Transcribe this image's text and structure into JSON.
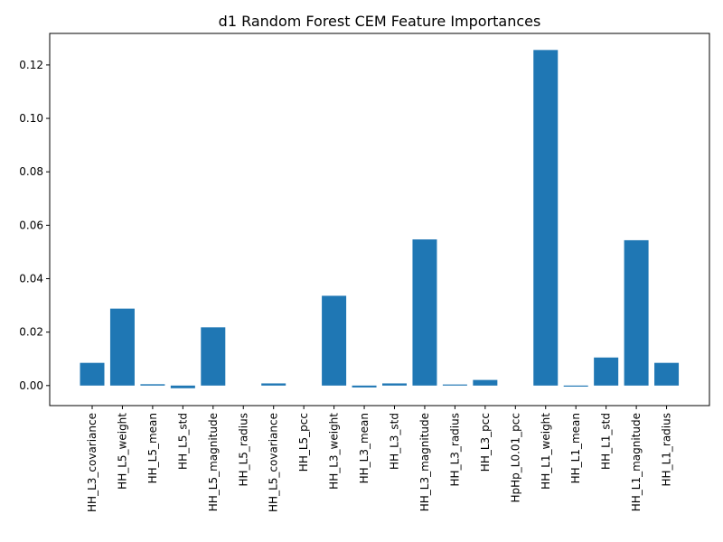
{
  "chart_data": {
    "type": "bar",
    "title": "d1 Random Forest CEM Feature Importances",
    "xlabel": "",
    "ylabel": "",
    "categories": [
      "HH_L3_covariance",
      "HH_L5_weight",
      "HH_L5_mean",
      "HH_L5_std",
      "HH_L5_magnitude",
      "HH_L5_radius",
      "HH_L5_covariance",
      "HH_L5_pcc",
      "HH_L3_weight",
      "HH_L3_mean",
      "HH_L3_std",
      "HH_L3_magnitude",
      "HH_L3_radius",
      "HH_L3_pcc",
      "HpHp_L0.01_pcc",
      "HH_L1_weight",
      "HH_L1_mean",
      "HH_L1_std",
      "HH_L1_magnitude",
      "HH_L1_radius"
    ],
    "values": [
      0.0085,
      0.0288,
      0.0005,
      -0.001,
      0.0218,
      0.0,
      0.0008,
      0.0,
      0.0336,
      -0.0007,
      0.0008,
      0.0547,
      0.0004,
      0.0021,
      0.0,
      0.1256,
      -0.0004,
      0.0105,
      0.0544,
      0.0085
    ],
    "ylim": [
      -0.0075,
      0.1318
    ],
    "yticks": [
      "0.00",
      "0.02",
      "0.04",
      "0.06",
      "0.08",
      "0.10",
      "0.12"
    ],
    "ytick_values": [
      0.0,
      0.02,
      0.04,
      0.06,
      0.08,
      0.1,
      0.12
    ],
    "bar_color": "#1f77b4",
    "grid": false,
    "legend": "none"
  }
}
